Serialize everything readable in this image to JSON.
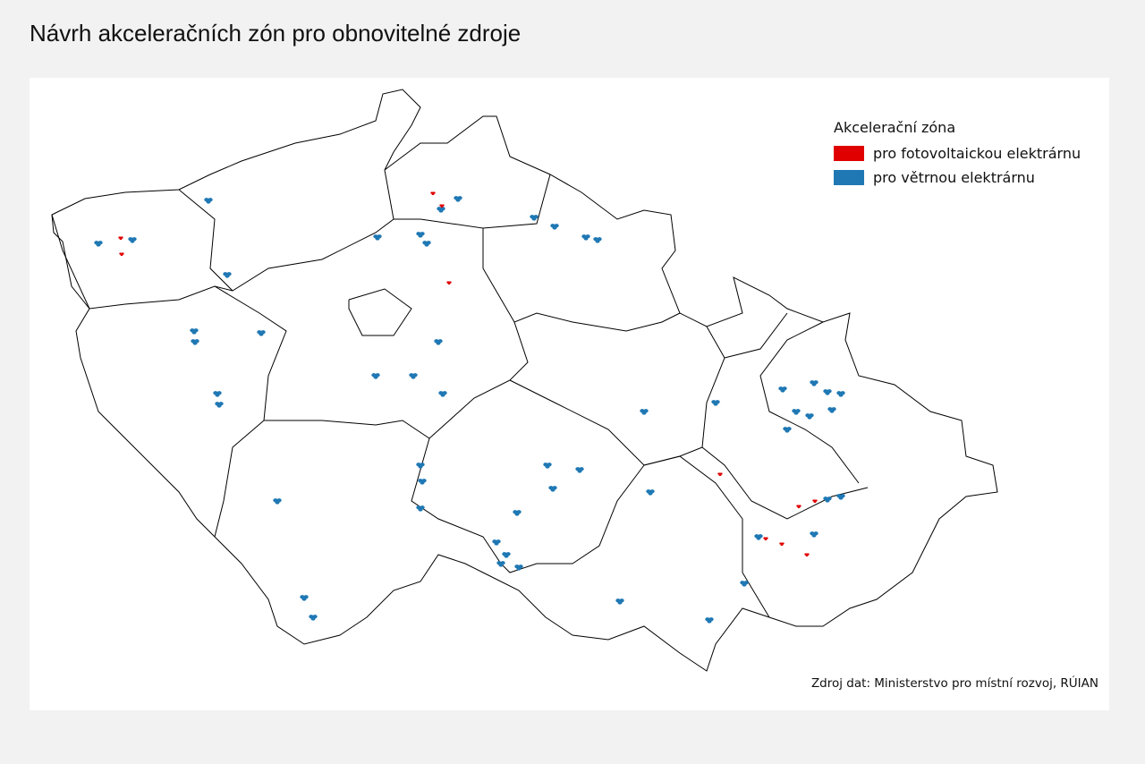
{
  "title": "Návrh akceleračních zón pro obnovitelné zdroje",
  "legend": {
    "title": "Akcelerační zóna",
    "items": [
      {
        "label": "pro fotovoltaickou elektrárnu",
        "color": "#e00000"
      },
      {
        "label": "pro větrnou elektrárnu",
        "color": "#1f78b4"
      }
    ]
  },
  "source": "Zdroj dat: Ministerstvo pro místní rozvoj, RÚIAN",
  "map": {
    "border_color": "#000000",
    "fill": "#ffffff"
  }
}
